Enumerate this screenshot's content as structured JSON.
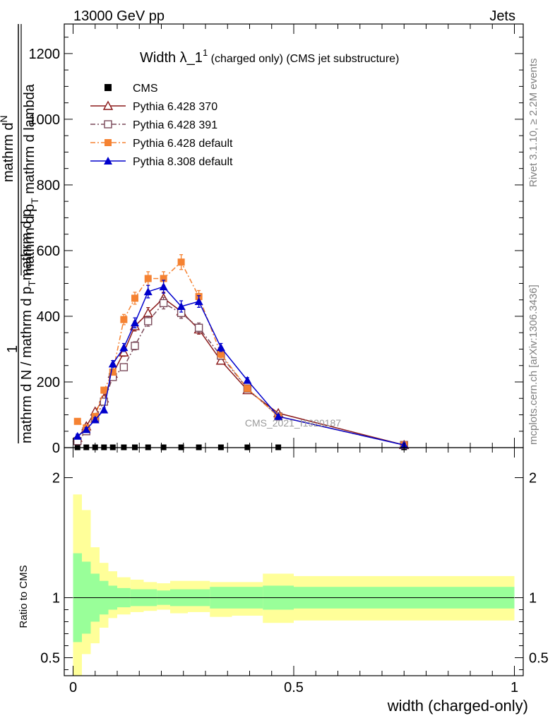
{
  "header": {
    "left": "13000 GeV pp",
    "right": "Jets"
  },
  "side": {
    "rivet": "Rivet 3.1.10, ≥ 2.2M events",
    "mcplots": "mcplots.cern.ch [arXiv:1306.3436]"
  },
  "title": {
    "main": "Width λ_1",
    "sup": "1",
    "rest": " (charged only) (CMS jet substructure)"
  },
  "watermark": "CMS_2021_I1920187",
  "ylabel_main": {
    "numerator_a": "mathrm d",
    "numerator_b": "N",
    "numerator_c": "mathrm d p",
    "numerator_d": "T",
    "numerator_e": " mathrm d lambda",
    "one": "1",
    "denominator": "mathrm d N / mathrm d p",
    "denominator_sub": "T",
    "denominator_rest": "mathrm d p",
    "denominator_sub2": "T"
  },
  "ylabel_ratio": "Ratio to CMS",
  "xlabel": "width (charged-only)",
  "legend": [
    {
      "label": "CMS",
      "color": "#000000",
      "marker": "square-filled",
      "dash": "solid"
    },
    {
      "label": "Pythia 6.428 370",
      "color": "#8b1a1a",
      "marker": "triangle-open",
      "dash": "solid"
    },
    {
      "label": "Pythia 6.428 391",
      "color": "#7a4a5a",
      "marker": "square-open",
      "dash": "dashdot"
    },
    {
      "label": "Pythia 6.428 default",
      "color": "#f58232",
      "marker": "square-filled",
      "dash": "dashdot"
    },
    {
      "label": "Pythia 8.308 default",
      "color": "#0000cc",
      "marker": "triangle-filled",
      "dash": "solid"
    }
  ],
  "chart_data": [
    {
      "type": "line",
      "panel": "main",
      "xlim": [
        -0.02,
        1.02
      ],
      "ylim": [
        0,
        1290
      ],
      "yticks": [
        0,
        200,
        400,
        600,
        800,
        1000,
        1200
      ],
      "x": [
        0.01,
        0.03,
        0.05,
        0.07,
        0.09,
        0.115,
        0.14,
        0.17,
        0.205,
        0.245,
        0.285,
        0.335,
        0.395,
        0.465,
        0.75
      ],
      "series": [
        {
          "name": "CMS",
          "values": [
            1,
            1,
            1,
            1,
            1,
            1,
            1,
            1,
            1,
            1,
            1,
            1,
            1,
            1,
            1
          ]
        },
        {
          "name": "Pythia 6.428 370",
          "values": [
            30,
            65,
            110,
            150,
            225,
            290,
            370,
            410,
            455,
            415,
            360,
            265,
            175,
            105,
            8
          ]
        },
        {
          "name": "Pythia 6.428 391",
          "values": [
            20,
            50,
            90,
            140,
            215,
            245,
            310,
            385,
            440,
            410,
            365,
            280,
            180,
            95,
            8
          ]
        },
        {
          "name": "Pythia 6.428 default",
          "values": [
            80,
            60,
            95,
            175,
            230,
            390,
            455,
            515,
            515,
            565,
            460,
            285,
            180,
            95,
            8
          ]
        },
        {
          "name": "Pythia 8.308 default",
          "values": [
            35,
            55,
            85,
            115,
            255,
            305,
            380,
            475,
            490,
            430,
            445,
            305,
            205,
            95,
            8
          ]
        }
      ]
    },
    {
      "type": "area",
      "panel": "ratio",
      "ylabel": "Ratio to CMS",
      "xlabel": "width (charged-only)",
      "xlim": [
        -0.02,
        1.02
      ],
      "ylim": [
        0.35,
        2.25
      ],
      "yticks": [
        0.5,
        1,
        2
      ],
      "xticks": [
        0,
        0.5,
        1
      ],
      "bin_edges": [
        0.0,
        0.02,
        0.04,
        0.06,
        0.08,
        0.1,
        0.13,
        0.16,
        0.19,
        0.22,
        0.26,
        0.31,
        0.36,
        0.43,
        0.5,
        1.0
      ],
      "band_inner_lo": [
        0.63,
        0.7,
        0.8,
        0.86,
        0.9,
        0.92,
        0.93,
        0.93,
        0.94,
        0.93,
        0.93,
        0.91,
        0.91,
        0.9,
        0.91
      ],
      "band_inner_hi": [
        1.37,
        1.3,
        1.2,
        1.14,
        1.1,
        1.08,
        1.07,
        1.07,
        1.06,
        1.07,
        1.07,
        1.09,
        1.09,
        1.1,
        1.09
      ],
      "band_outer_lo": [
        0.3,
        0.53,
        0.62,
        0.75,
        0.83,
        0.86,
        0.88,
        0.89,
        0.9,
        0.87,
        0.88,
        0.84,
        0.85,
        0.79,
        0.81
      ],
      "band_outer_hi": [
        1.86,
        1.73,
        1.42,
        1.29,
        1.22,
        1.17,
        1.15,
        1.13,
        1.12,
        1.14,
        1.14,
        1.13,
        1.13,
        1.2,
        1.18
      ],
      "inner_color": "#99ff99",
      "outer_color": "#ffff99"
    }
  ]
}
